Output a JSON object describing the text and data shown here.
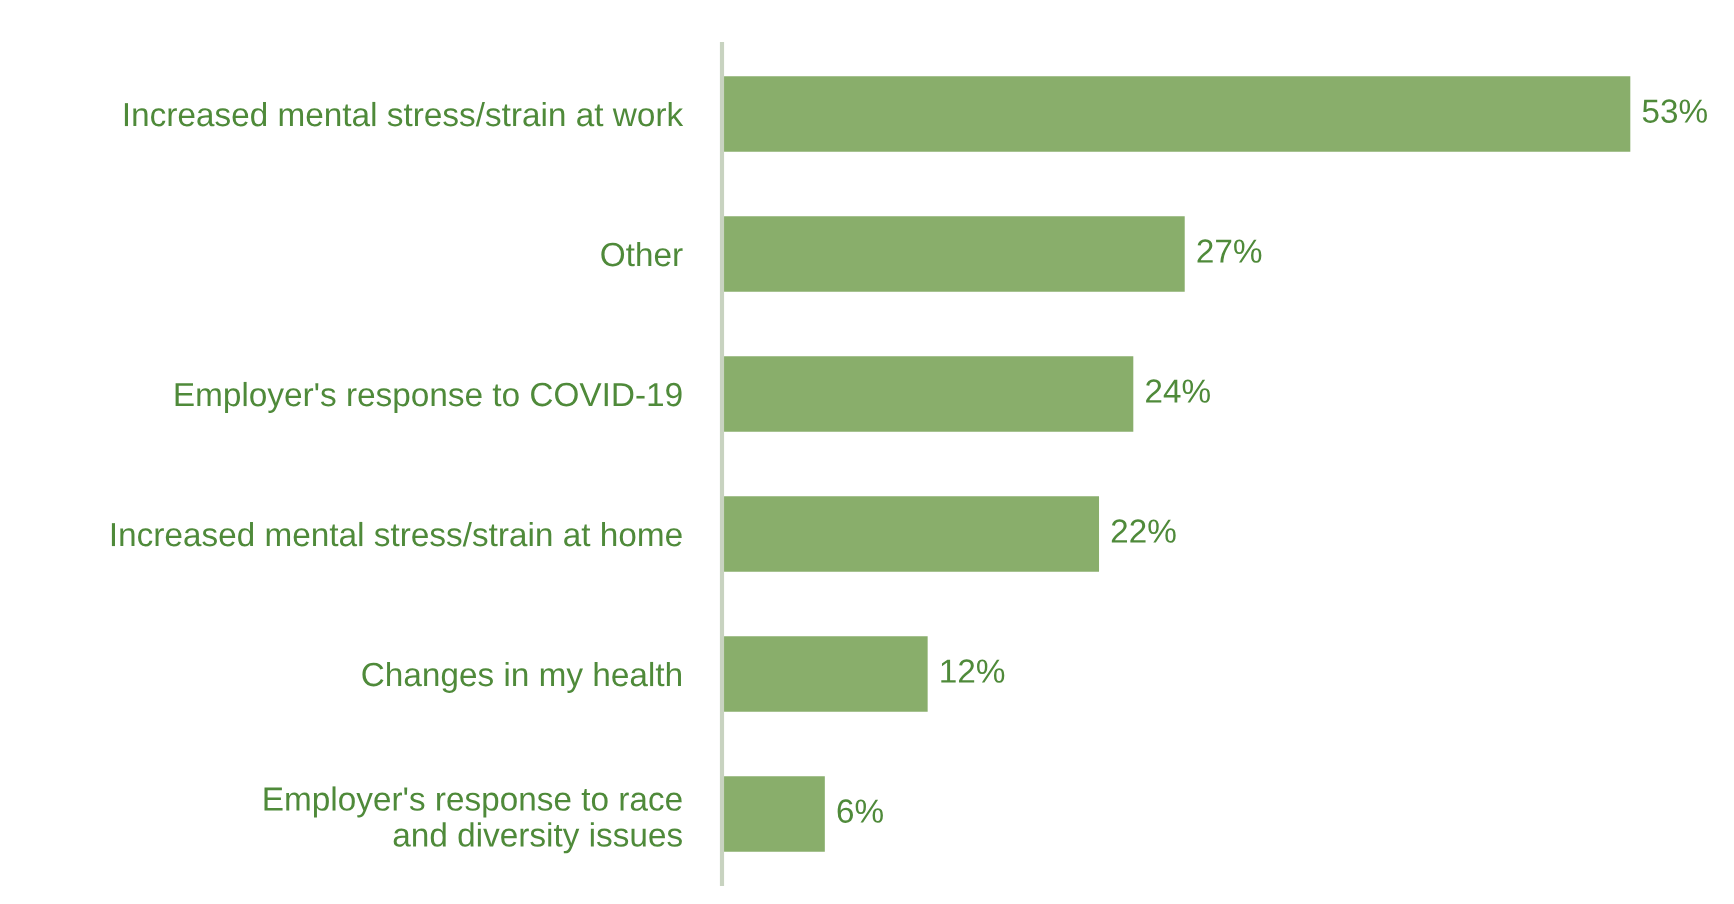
{
  "chart_data": {
    "type": "bar",
    "orientation": "horizontal",
    "categories": [
      "Increased mental stress/strain at work",
      "Other",
      "Employer's response to COVID-19",
      "Increased mental stress/strain at home",
      "Changes in my health",
      "Employer's response to race\nand diversity issues"
    ],
    "values": [
      53,
      27,
      24,
      22,
      12,
      6
    ],
    "value_labels": [
      "53%",
      "27%",
      "24%",
      "22%",
      "12%",
      "6%"
    ],
    "color": "#89ae6b",
    "grid": false,
    "legend": false
  }
}
